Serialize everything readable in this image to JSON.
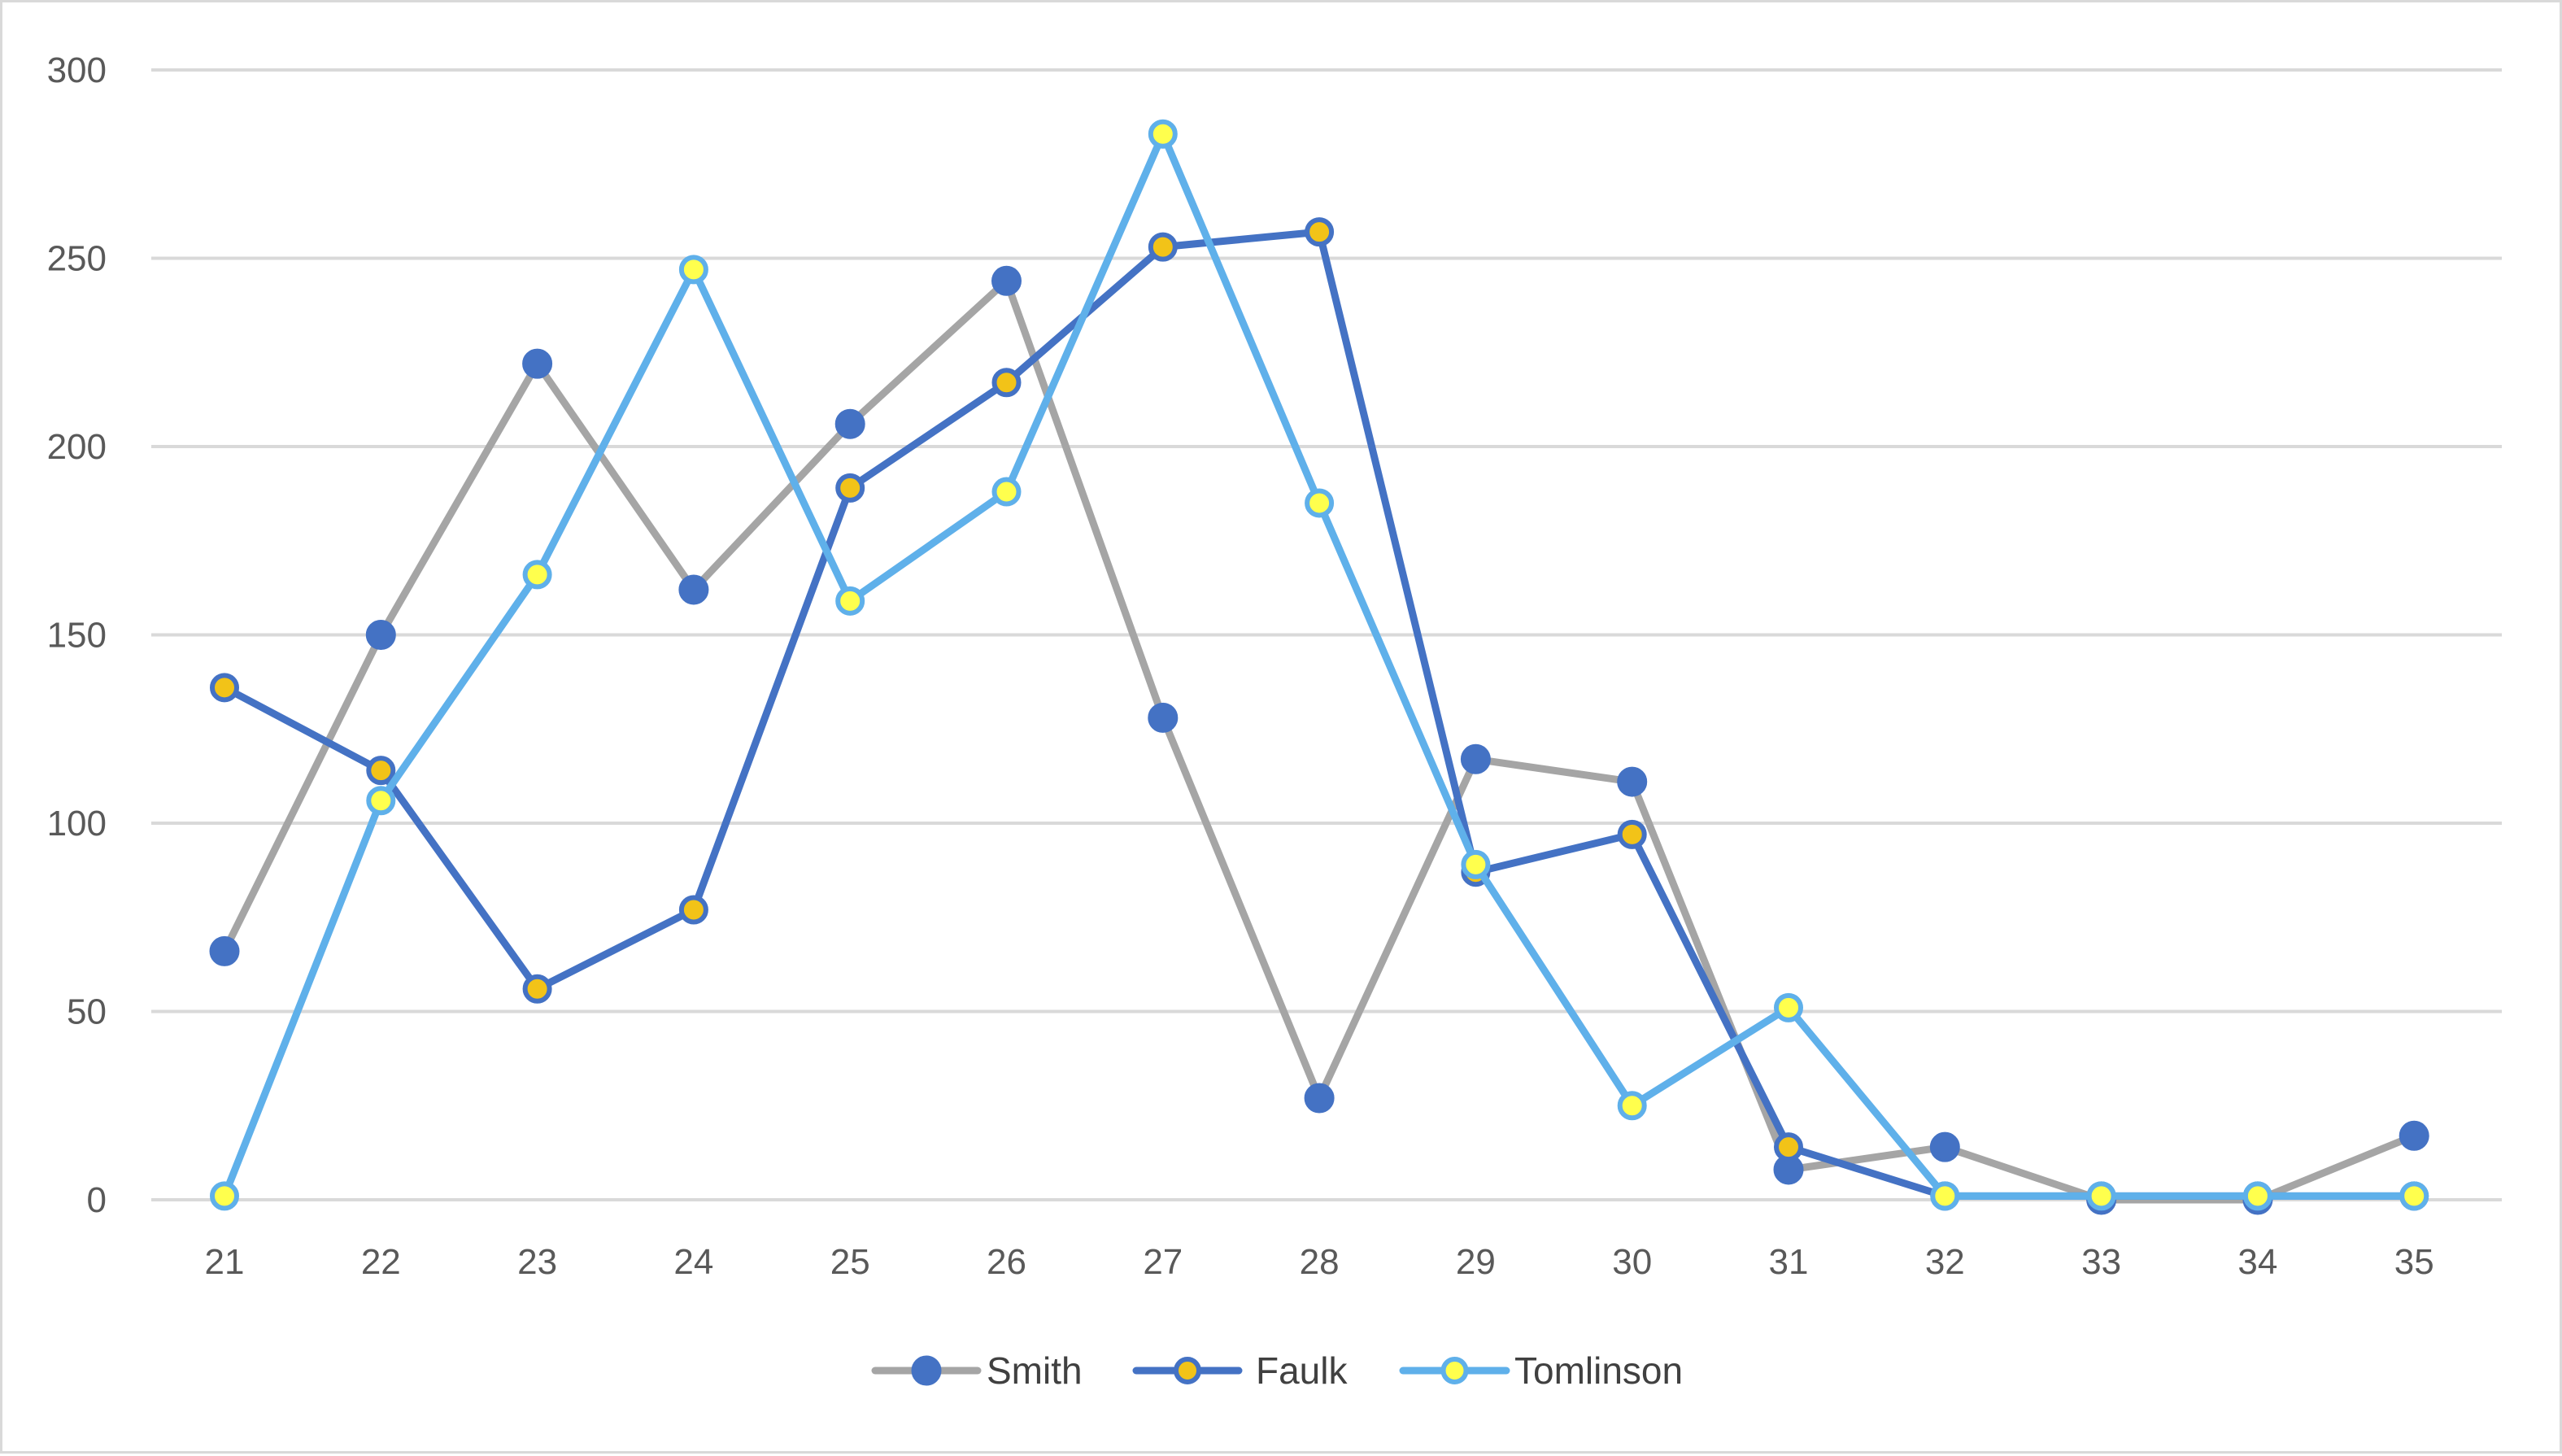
{
  "chart_data": {
    "type": "line",
    "title": "",
    "xlabel": "",
    "ylabel": "",
    "categories": [
      "21",
      "22",
      "23",
      "24",
      "25",
      "26",
      "27",
      "28",
      "29",
      "30",
      "31",
      "32",
      "33",
      "34",
      "35"
    ],
    "ylim": [
      0,
      300
    ],
    "yticks": [
      0,
      50,
      100,
      150,
      200,
      250,
      300
    ],
    "grid": "horizontal",
    "legend_position": "bottom",
    "series": [
      {
        "name": "Smith",
        "color": "#a5a5a5",
        "marker": "filled-circle",
        "marker_fill": "#4472c4",
        "marker_stroke": "#4472c4",
        "values": [
          66,
          150,
          222,
          162,
          206,
          244,
          128,
          27,
          117,
          111,
          8,
          14,
          0,
          0,
          17
        ]
      },
      {
        "name": "Faulk",
        "color": "#4472c4",
        "marker": "ringed-circle",
        "marker_fill": "#f2c318",
        "marker_stroke": "#4472c4",
        "values": [
          136,
          114,
          56,
          77,
          189,
          217,
          253,
          257,
          87,
          97,
          14,
          1,
          1,
          1,
          1
        ]
      },
      {
        "name": "Tomlinson",
        "color": "#5fb0ea",
        "marker": "ringed-circle",
        "marker_fill": "#ffff4d",
        "marker_stroke": "#5fb0ea",
        "values": [
          1,
          106,
          166,
          247,
          159,
          188,
          283,
          185,
          89,
          25,
          51,
          1,
          1,
          1,
          1
        ]
      }
    ]
  }
}
